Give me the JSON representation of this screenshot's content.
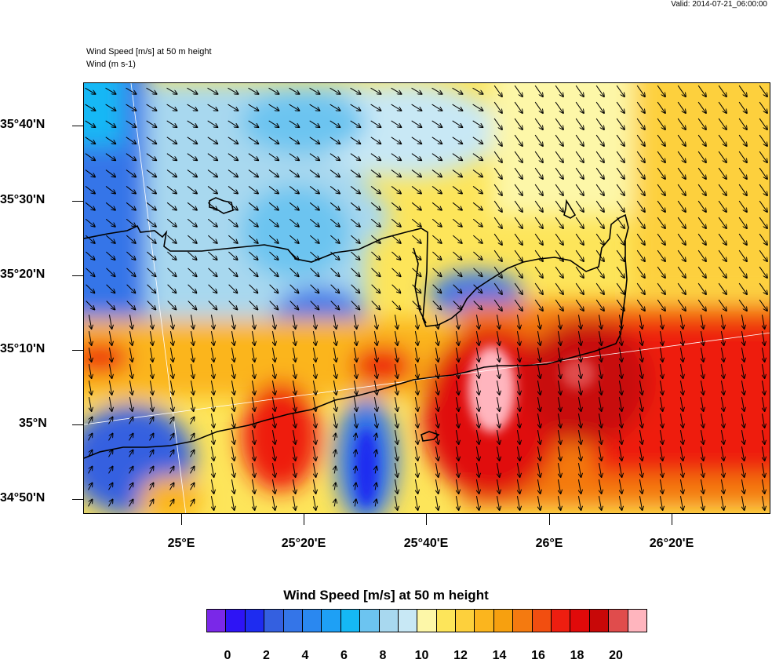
{
  "valid_time": "Valid: 2014-07-21_06:00:00",
  "subtitles": [
    "Wind Speed [m/s] at 50 m height",
    "Wind   (m s-1)"
  ],
  "lat_labels": [
    "35°40'N",
    "35°30'N",
    "35°20'N",
    "35°10'N",
    "35°N",
    "34°50'N"
  ],
  "lon_labels": [
    "25°E",
    "25°20'E",
    "25°40'E",
    "26°E",
    "26°20'E"
  ],
  "colorbar": {
    "title": "Wind Speed [m/s] at 50 m height",
    "colors": [
      "#7a28e8",
      "#2e14f5",
      "#1e2cf0",
      "#3460e0",
      "#3475e8",
      "#2a88f0",
      "#1ea0f5",
      "#15b8f5",
      "#6cc4f0",
      "#a8d8ef",
      "#c8e8f5",
      "#fdf7a8",
      "#fde55a",
      "#fdd03c",
      "#fbb51e",
      "#f7a00f",
      "#f47a10",
      "#f24e10",
      "#ee1e10",
      "#e00a0a",
      "#c80808",
      "#e04c4c",
      "#ffb5be"
    ],
    "tick_labels": [
      "0",
      "2",
      "4",
      "6",
      "8",
      "10",
      "12",
      "14",
      "16",
      "18",
      "20"
    ]
  },
  "legend_colors": {
    "calm": "#3460e0",
    "light": "#a8d8ef",
    "moderate": "#fde55a",
    "strong": "#f47a10",
    "very_strong": "#e00a0a",
    "extreme": "#ffb5be"
  }
}
